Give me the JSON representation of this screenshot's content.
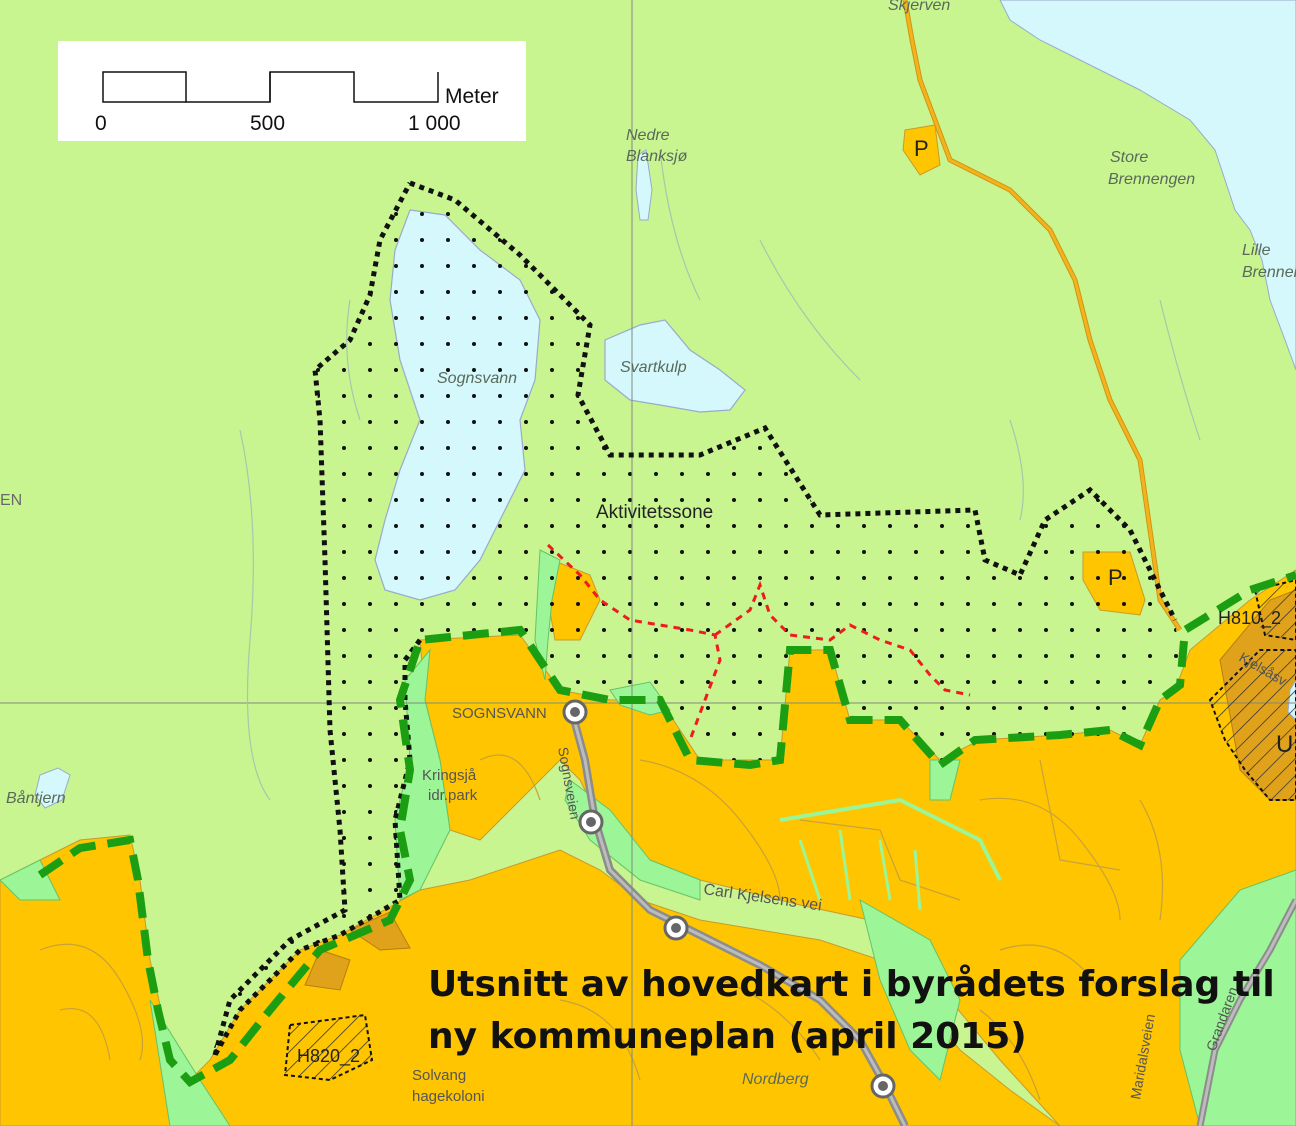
{
  "title": {
    "line1": "Utsnitt av hovedkart i byrådets forslag til",
    "line2": "ny kommuneplan  (april 2015)"
  },
  "scale_bar": {
    "unit": "Meter",
    "ticks": [
      "0",
      "500",
      "1 000"
    ]
  },
  "labels": {
    "skjerven": "Skjerven",
    "nedre_blanksjo_1": "Nedre",
    "nedre_blanksjo_2": "Blanksjø",
    "store_brennengen_1": "Store",
    "store_brennengen_2": "Brennengen",
    "lille_brennengen_1": "Lille",
    "lille_brennengen_2": "Brennen",
    "sognsvann_lake": "Sognsvann",
    "svartkulp": "Svartkulp",
    "aktivitetssone": "Aktivitetssone",
    "sognsvann_station": "SOGNSVANN",
    "sognsveien": "Sognsveien",
    "kringsja_1": "Kringsjå",
    "kringsja_2": "idr.park",
    "bantjern": "Båntjern",
    "en_edge": "EN",
    "carl_kjelsens_vei": "Carl Kjelsens vei",
    "h810": "H810_2",
    "kjelsasv": "Kjelsåsv",
    "u_zone": "U",
    "h820": "H820_2",
    "solvang_1": "Solvang",
    "solvang_2": "hagekoloni",
    "nordberg": "Nordberg",
    "maridalsveien": "Maridalsveien",
    "grandaren": "Grandaren",
    "parking_1": "P",
    "parking_2": "P"
  },
  "colors": {
    "forest": "#c8f590",
    "water": "#d4f8fb",
    "built_zone": "#fec500",
    "built_dark": "#e0a21a",
    "park": "#9cf596",
    "boundary_green": "#1c9e12",
    "boundary_black": "#111111",
    "trail_red": "#ee1c1c",
    "road": "#8c8c8c",
    "road_yellow": "#f4b21e"
  }
}
